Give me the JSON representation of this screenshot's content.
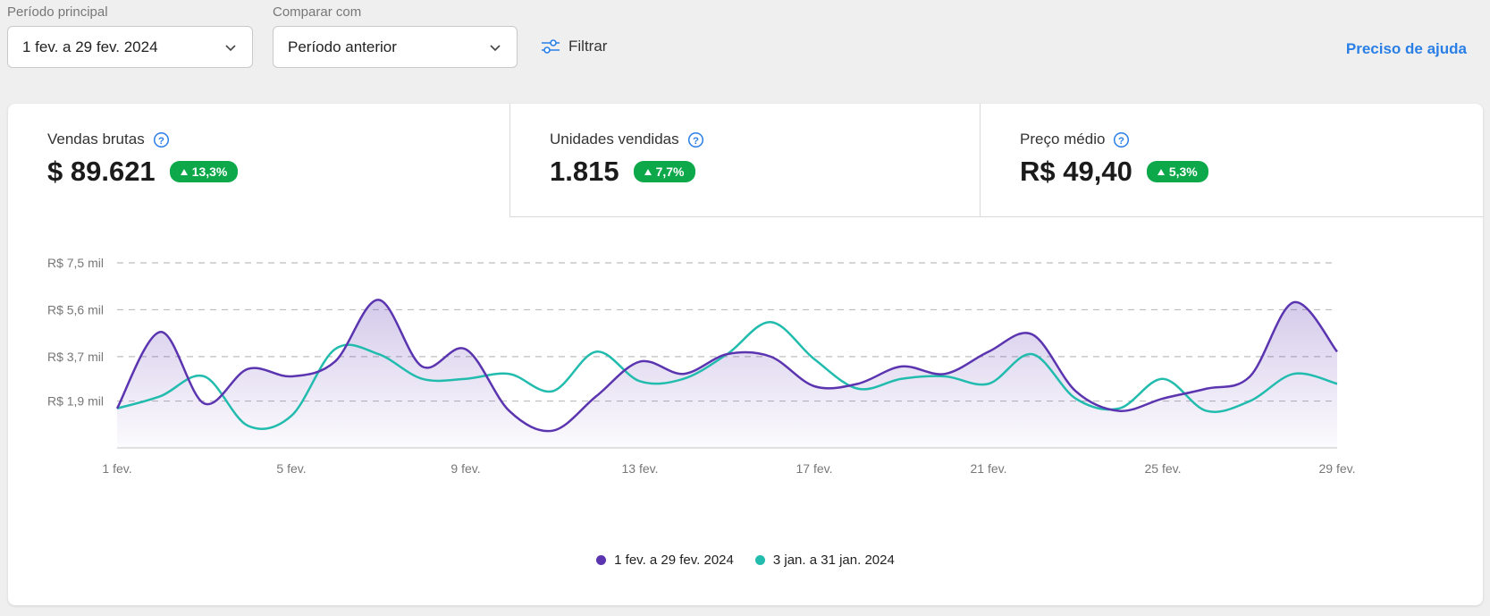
{
  "controls": {
    "main_period": {
      "label": "Período principal",
      "value": "1 fev. a 29 fev. 2024"
    },
    "compare": {
      "label": "Comparar com",
      "value": "Período anterior"
    },
    "filter_label": "Filtrar",
    "help_link": "Preciso de ajuda"
  },
  "metrics": [
    {
      "name": "Vendas brutas",
      "value": "$ 89.621",
      "change": "13,3%"
    },
    {
      "name": "Unidades vendidas",
      "value": "1.815",
      "change": "7,7%"
    },
    {
      "name": "Preço médio",
      "value": "R$ 49,40",
      "change": "5,3%"
    }
  ],
  "legend": {
    "current": "1 fev. a 29 fev. 2024",
    "previous": "3 jan. a 31 jan. 2024"
  },
  "colors": {
    "current": "#5b34b0",
    "previous": "#22bcae",
    "badge": "#0da84a",
    "link": "#2a7fe6"
  },
  "icons": {
    "help": "question-circle-icon",
    "filter": "sliders-icon",
    "dropdown": "chevron-down-icon"
  },
  "chart_data": {
    "type": "area",
    "x": [
      "1 fev.",
      "2 fev.",
      "3 fev.",
      "4 fev.",
      "5 fev.",
      "6 fev.",
      "7 fev.",
      "8 fev.",
      "9 fev.",
      "10 fev.",
      "11 fev.",
      "12 fev.",
      "13 fev.",
      "14 fev.",
      "15 fev.",
      "16 fev.",
      "17 fev.",
      "18 fev.",
      "19 fev.",
      "20 fev.",
      "21 fev.",
      "22 fev.",
      "23 fev.",
      "24 fev.",
      "25 fev.",
      "26 fev.",
      "27 fev.",
      "28 fev.",
      "29 fev."
    ],
    "x_ticks": [
      "1 fev.",
      "5 fev.",
      "9 fev.",
      "13 fev.",
      "17 fev.",
      "21 fev.",
      "25 fev.",
      "29 fev."
    ],
    "y_ticks": [
      "R$ 1,9 mil",
      "R$ 3,7 mil",
      "R$ 5,6 mil",
      "R$ 7,5 mil"
    ],
    "y_tick_values": [
      1.9,
      3.7,
      5.6,
      7.5
    ],
    "ylim": [
      0,
      7.5
    ],
    "series": [
      {
        "name": "1 fev. a 29 fev. 2024",
        "values": [
          1.6,
          4.7,
          1.8,
          3.2,
          2.9,
          3.5,
          6.0,
          3.3,
          4.0,
          1.5,
          0.7,
          2.1,
          3.5,
          3.0,
          3.8,
          3.7,
          2.5,
          2.6,
          3.3,
          3.0,
          3.9,
          4.6,
          2.3,
          1.5,
          2.0,
          2.4,
          2.9,
          5.9,
          3.9
        ]
      },
      {
        "name": "3 jan. a 31 jan. 2024",
        "values": [
          1.6,
          2.1,
          2.9,
          0.9,
          1.3,
          4.0,
          3.8,
          2.8,
          2.8,
          3.0,
          2.3,
          3.9,
          2.7,
          2.8,
          3.8,
          5.1,
          3.6,
          2.4,
          2.8,
          2.9,
          2.6,
          3.8,
          2.0,
          1.6,
          2.8,
          1.5,
          1.9,
          3.0,
          2.6
        ]
      }
    ],
    "grid": true,
    "legend_position": "bottom-center"
  }
}
